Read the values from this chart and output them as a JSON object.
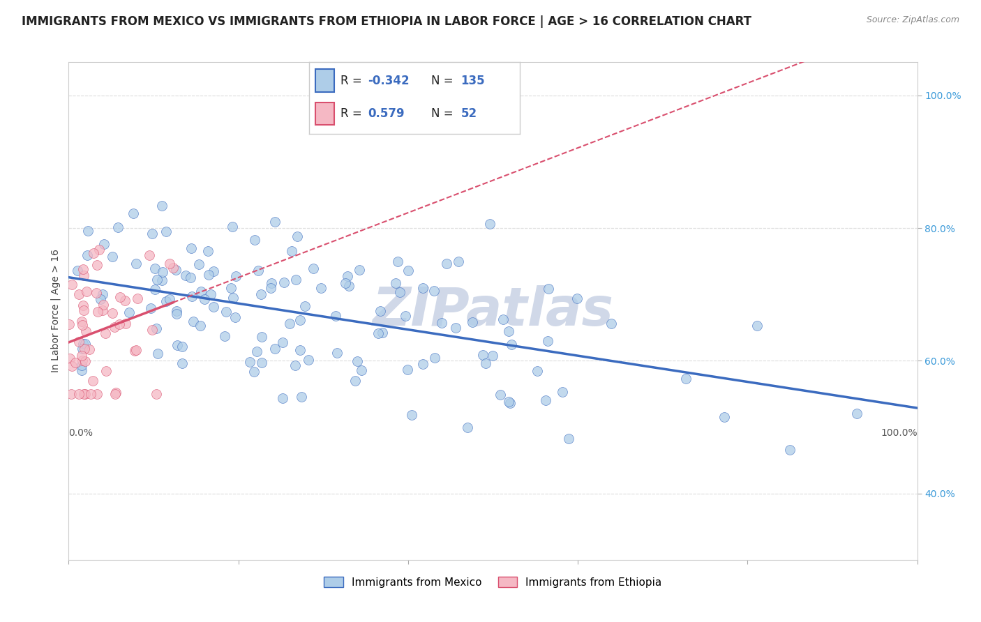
{
  "title": "IMMIGRANTS FROM MEXICO VS IMMIGRANTS FROM ETHIOPIA IN LABOR FORCE | AGE > 16 CORRELATION CHART",
  "source": "Source: ZipAtlas.com",
  "ylabel": "In Labor Force | Age > 16",
  "legend_label_mexico": "Immigrants from Mexico",
  "legend_label_ethiopia": "Immigrants from Ethiopia",
  "R_mexico": -0.342,
  "N_mexico": 135,
  "R_ethiopia": 0.579,
  "N_ethiopia": 52,
  "xlim": [
    0.0,
    1.0
  ],
  "ylim": [
    0.3,
    1.05
  ],
  "color_mexico": "#aecde8",
  "color_ethiopia": "#f5b8c4",
  "trend_color_mexico": "#3b6bbf",
  "trend_color_ethiopia": "#d94f6e",
  "background_color": "#ffffff",
  "grid_color": "#e0e0e0",
  "watermark": "ZIPatlas",
  "watermark_color": "#d0d8e8",
  "title_fontsize": 12,
  "axis_label_fontsize": 10,
  "tick_fontsize": 10,
  "dot_size": 100
}
